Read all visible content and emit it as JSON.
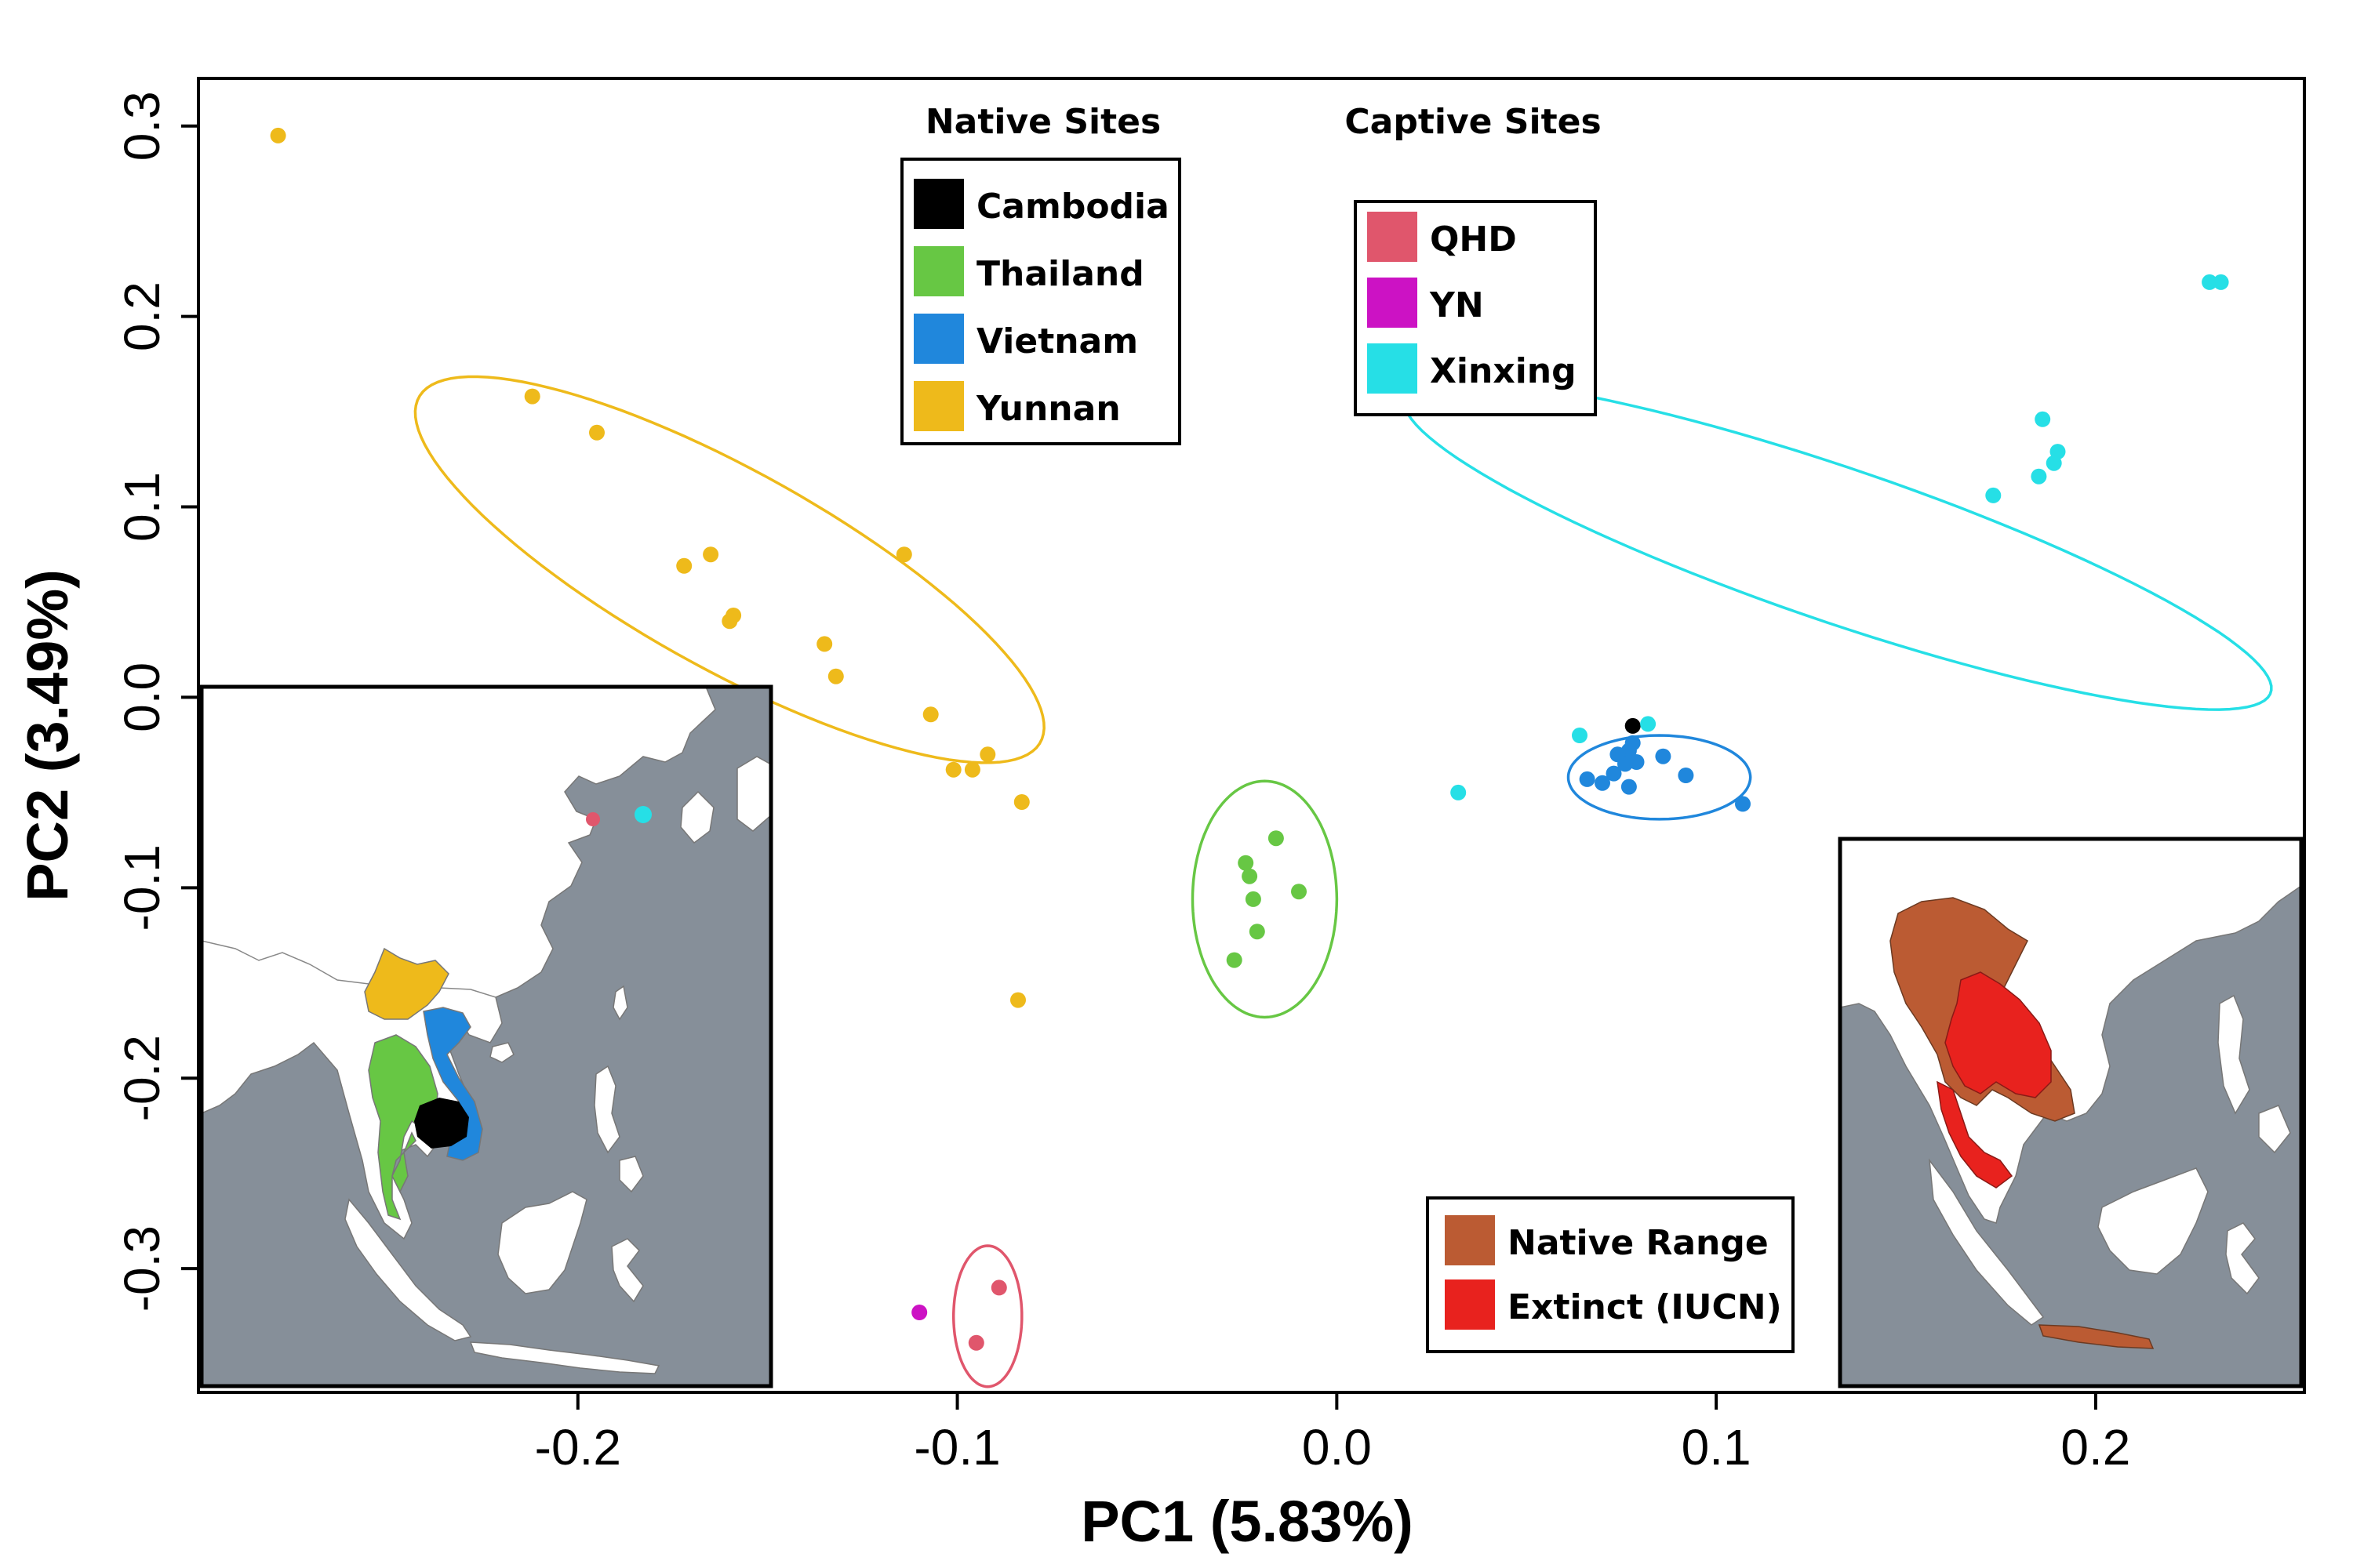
{
  "chart_data": {
    "type": "scatter",
    "xlabel": "PC1 (5.83%)",
    "ylabel": "PC2 (3.49%)",
    "xlim": [
      -0.3,
      0.255
    ],
    "ylim": [
      -0.365,
      0.325
    ],
    "x_ticks": [
      -0.2,
      -0.1,
      0.0,
      0.1,
      0.2
    ],
    "x_tick_labels": [
      "-0.2",
      "-0.1",
      "0.0",
      "0.1",
      "0.2"
    ],
    "y_ticks": [
      0.3,
      0.2,
      0.1,
      0.0,
      -0.1,
      -0.2,
      -0.3
    ],
    "y_tick_labels": [
      "0.3",
      "0.2",
      "0.1",
      "0.0",
      "-0.1",
      "-0.2",
      "-0.3"
    ],
    "grid": false,
    "series": [
      {
        "name": "Cambodia",
        "color": "#000000",
        "group": "native",
        "points": [
          [
            0.078,
            -0.015
          ]
        ]
      },
      {
        "name": "Thailand",
        "color": "#67c744",
        "group": "native",
        "points": [
          [
            -0.024,
            -0.087
          ],
          [
            -0.016,
            -0.074
          ],
          [
            -0.023,
            -0.094
          ],
          [
            -0.01,
            -0.102
          ],
          [
            -0.022,
            -0.106
          ],
          [
            -0.021,
            -0.123
          ],
          [
            -0.027,
            -0.138
          ]
        ]
      },
      {
        "name": "Vietnam",
        "color": "#2087dc",
        "group": "native",
        "points": [
          [
            0.078,
            -0.024
          ],
          [
            0.077,
            -0.028
          ],
          [
            0.074,
            -0.03
          ],
          [
            0.079,
            -0.034
          ],
          [
            0.076,
            -0.035
          ],
          [
            0.086,
            -0.031
          ],
          [
            0.073,
            -0.04
          ],
          [
            0.066,
            -0.043
          ],
          [
            0.07,
            -0.045
          ],
          [
            0.077,
            -0.047
          ],
          [
            0.092,
            -0.041
          ],
          [
            0.107,
            -0.056
          ]
        ]
      },
      {
        "name": "Yunnan",
        "color": "#eeba1b",
        "group": "native",
        "points": [
          [
            -0.279,
            0.295
          ],
          [
            -0.212,
            0.158
          ],
          [
            -0.195,
            0.139
          ],
          [
            -0.114,
            0.075
          ],
          [
            -0.165,
            0.075
          ],
          [
            -0.172,
            0.069
          ],
          [
            -0.159,
            0.043
          ],
          [
            -0.16,
            0.04
          ],
          [
            -0.135,
            0.028
          ],
          [
            -0.132,
            0.011
          ],
          [
            -0.107,
            -0.009
          ],
          [
            -0.092,
            -0.03
          ],
          [
            -0.101,
            -0.038
          ],
          [
            -0.096,
            -0.038
          ],
          [
            -0.083,
            -0.055
          ],
          [
            -0.084,
            -0.159
          ]
        ]
      },
      {
        "name": "QHD",
        "color": "#e0566c",
        "group": "captive",
        "points": [
          [
            -0.089,
            -0.31
          ],
          [
            -0.095,
            -0.339
          ]
        ]
      },
      {
        "name": "YN",
        "color": "#cc12c4",
        "group": "captive",
        "points": [
          [
            -0.11,
            -0.323
          ]
        ]
      },
      {
        "name": "Xinxing",
        "color": "#26dfe6",
        "group": "captive",
        "points": [
          [
            0.23,
            0.218
          ],
          [
            0.233,
            0.218
          ],
          [
            0.186,
            0.146
          ],
          [
            0.19,
            0.129
          ],
          [
            0.189,
            0.123
          ],
          [
            0.185,
            0.116
          ],
          [
            0.173,
            0.106
          ],
          [
            0.064,
            -0.02
          ],
          [
            0.082,
            -0.014
          ],
          [
            0.032,
            -0.05
          ]
        ]
      }
    ],
    "ellipses": [
      {
        "series": "Yunnan",
        "color": "#eeba1b",
        "center": [
          -0.16,
          0.067
        ],
        "semi_axes": [
          0.125,
          0.039
        ],
        "angle_deg": -52
      },
      {
        "series": "Thailand",
        "color": "#67c744",
        "center": [
          -0.019,
          -0.106
        ],
        "semi_axes": [
          0.019,
          0.062
        ],
        "angle_deg": 0
      },
      {
        "series": "Vietnam",
        "color": "#2087dc",
        "center": [
          0.085,
          -0.042
        ],
        "semi_axes": [
          0.024,
          0.022
        ],
        "angle_deg": 0
      },
      {
        "series": "Xinxing",
        "color": "#26dfe6",
        "center": [
          0.132,
          0.08
        ],
        "semi_axes": [
          0.139,
          0.035
        ],
        "angle_deg": -36
      },
      {
        "series": "QHD",
        "color": "#e0566c",
        "center": [
          -0.092,
          -0.325
        ],
        "semi_axes": [
          0.009,
          0.037
        ],
        "angle_deg": 0
      }
    ],
    "legends": {
      "native": {
        "title": "Native Sites",
        "entries": [
          {
            "label": "Cambodia",
            "color": "#000000"
          },
          {
            "label": "Thailand",
            "color": "#67c744"
          },
          {
            "label": "Vietnam",
            "color": "#2087dc"
          },
          {
            "label": "Yunnan",
            "color": "#eeba1b"
          }
        ]
      },
      "captive": {
        "title": "Captive Sites",
        "entries": [
          {
            "label": "QHD",
            "color": "#e0566c"
          },
          {
            "label": "YN",
            "color": "#cc12c4"
          },
          {
            "label": "Xinxing",
            "color": "#26dfe6"
          }
        ]
      },
      "range": {
        "entries": [
          {
            "label": "Native Range",
            "color": "#bb5b33"
          },
          {
            "label": "Extinct (IUCN)",
            "color": "#e8221e"
          }
        ]
      }
    },
    "insets": {
      "sites_map": {
        "ocean_color": "#868f99",
        "land_color": "#ffffff",
        "regions": [
          {
            "label": "Yunnan",
            "color": "#eeba1b"
          },
          {
            "label": "Thailand",
            "color": "#67c744"
          },
          {
            "label": "Vietnam",
            "color": "#2087dc"
          },
          {
            "label": "Cambodia",
            "color": "#000000"
          }
        ],
        "captive_markers": [
          {
            "label": "QHD",
            "color": "#e0566c"
          },
          {
            "label": "Xinxing",
            "color": "#26dfe6"
          }
        ]
      },
      "range_map": {
        "ocean_color": "#868f99",
        "land_color": "#ffffff",
        "regions": [
          {
            "label": "Native Range",
            "color": "#bb5b33"
          },
          {
            "label": "Extinct (IUCN)",
            "color": "#e8221e"
          }
        ]
      }
    }
  }
}
